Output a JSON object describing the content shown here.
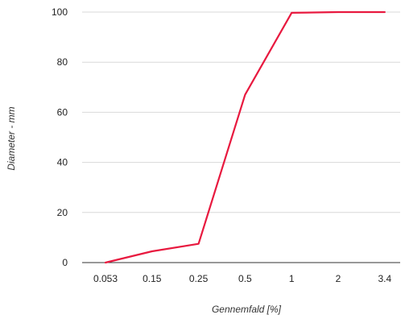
{
  "chart_data": {
    "type": "line",
    "title": "",
    "xlabel": "Gennemfald [%]",
    "ylabel": "Diameter - mm",
    "categories": [
      "0.053",
      "0.15",
      "0.25",
      "0.5",
      "1",
      "2",
      "3.4"
    ],
    "series": [
      {
        "values": [
          0,
          4.5,
          7.5,
          67,
          99.7,
          100,
          100
        ]
      }
    ],
    "ylim": [
      0,
      100
    ],
    "yticks": [
      0,
      20,
      40,
      60,
      80,
      100
    ],
    "grid": true,
    "legend": "none",
    "colors": {
      "line": "#e8193f",
      "grid": "#d9d9d9",
      "baseline": "#333333"
    }
  }
}
